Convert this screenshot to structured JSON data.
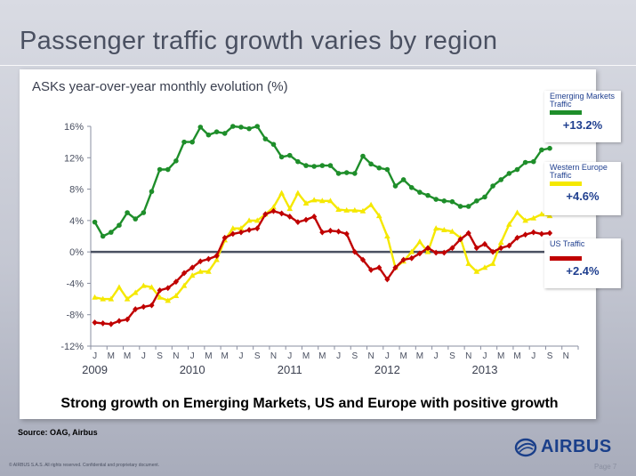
{
  "title": "Passenger traffic growth varies by region",
  "footnote": "Strong growth on Emerging Markets, US and Europe with positive growth",
  "source": "Source: OAG, Airbus",
  "copyright": "© AIRBUS S.A.S. All rights reserved. Confidential and proprietary document.",
  "logo_text": "AIRBUS",
  "page": "Page 7",
  "legend": [
    {
      "label": "Emerging Markets Traffic",
      "value": "+13.2%"
    },
    {
      "label": "Western Europe Traffic",
      "value": "+4.6%"
    },
    {
      "label": "US Traffic",
      "value": "+2.4%"
    }
  ],
  "colors": {
    "emerging": "#1e8e2a",
    "europe": "#f5e800",
    "us": "#c00000",
    "zero_line": "#4a5061",
    "text": "#1f3f8f"
  },
  "chart_data": {
    "type": "line",
    "title": "ASKs year-over-year monthly evolution (%)",
    "xlabel": "",
    "ylabel": "",
    "ylim": [
      -12,
      16
    ],
    "yticks": [
      -12,
      -8,
      -4,
      0,
      4,
      8,
      12,
      16
    ],
    "ytick_labels": [
      "-12%",
      "-8%",
      "-4%",
      "0%",
      "4%",
      "8%",
      "12%",
      "16%"
    ],
    "month_labels": [
      "J",
      "M",
      "M",
      "J",
      "S",
      "N",
      "J",
      "M",
      "M",
      "J",
      "S",
      "N",
      "J",
      "M",
      "M",
      "J",
      "S",
      "N",
      "J",
      "M",
      "M",
      "J",
      "S",
      "N",
      "J",
      "M",
      "M",
      "J",
      "S",
      "N"
    ],
    "year_labels": [
      {
        "label": "2009",
        "month_index": 0
      },
      {
        "label": "2010",
        "month_index": 12
      },
      {
        "label": "2011",
        "month_index": 24
      },
      {
        "label": "2012",
        "month_index": 36
      },
      {
        "label": "2013",
        "month_index": 48
      }
    ],
    "x_start": "Jan 2009",
    "x_end": "Dec 2013",
    "grid": false,
    "legend_position": "right",
    "series": [
      {
        "name": "Emerging Markets Traffic",
        "color": "#1e8e2a",
        "marker": "circle",
        "values": [
          3.8,
          2.0,
          2.5,
          3.4,
          5.0,
          4.2,
          5.0,
          7.7,
          10.5,
          10.5,
          11.6,
          14.0,
          14.0,
          15.9,
          14.9,
          15.3,
          15.1,
          16.0,
          15.9,
          15.7,
          16.0,
          14.4,
          13.7,
          12.1,
          12.3,
          11.5,
          11.0,
          10.9,
          11.0,
          11.0,
          10.0,
          10.1,
          10.0,
          12.2,
          11.2,
          10.7,
          10.5,
          8.4,
          9.2,
          8.2,
          7.6,
          7.2,
          6.7,
          6.5,
          6.4,
          5.8,
          5.8,
          6.5,
          7.0,
          8.4,
          9.2,
          10.0,
          10.5,
          11.4,
          11.5,
          13.0,
          13.2
        ]
      },
      {
        "name": "Western Europe Traffic",
        "color": "#f5e800",
        "marker": "triangle",
        "values": [
          -5.8,
          -6.0,
          -6.0,
          -4.5,
          -6.0,
          -5.2,
          -4.3,
          -4.5,
          -5.8,
          -6.2,
          -5.6,
          -4.3,
          -3.0,
          -2.5,
          -2.5,
          -1.0,
          1.5,
          3.0,
          3.0,
          4.0,
          4.0,
          4.8,
          5.7,
          7.5,
          5.5,
          7.5,
          6.2,
          6.6,
          6.5,
          6.5,
          5.4,
          5.3,
          5.3,
          5.2,
          6.0,
          4.6,
          2.0,
          -2.0,
          -1.2,
          0.0,
          1.3,
          0.0,
          3.0,
          2.8,
          2.6,
          1.8,
          -1.5,
          -2.5,
          -2.0,
          -1.5,
          1.2,
          3.5,
          5.0,
          4.0,
          4.3,
          4.8,
          4.6
        ]
      },
      {
        "name": "US Traffic",
        "color": "#c00000",
        "marker": "diamond",
        "values": [
          -9.0,
          -9.1,
          -9.2,
          -8.8,
          -8.6,
          -7.3,
          -7.0,
          -6.8,
          -4.9,
          -4.6,
          -3.8,
          -2.7,
          -2.0,
          -1.2,
          -0.9,
          -0.5,
          1.8,
          2.3,
          2.5,
          2.8,
          3.0,
          4.8,
          5.2,
          4.9,
          4.5,
          3.8,
          4.1,
          4.5,
          2.5,
          2.7,
          2.6,
          2.3,
          0.0,
          -1.0,
          -2.3,
          -2.0,
          -3.5,
          -2.0,
          -1.0,
          -0.8,
          -0.2,
          0.5,
          -0.1,
          -0.1,
          0.5,
          1.6,
          2.4,
          0.5,
          1.0,
          0.0,
          0.5,
          0.8,
          1.8,
          2.2,
          2.5,
          2.3,
          2.4
        ]
      }
    ]
  }
}
